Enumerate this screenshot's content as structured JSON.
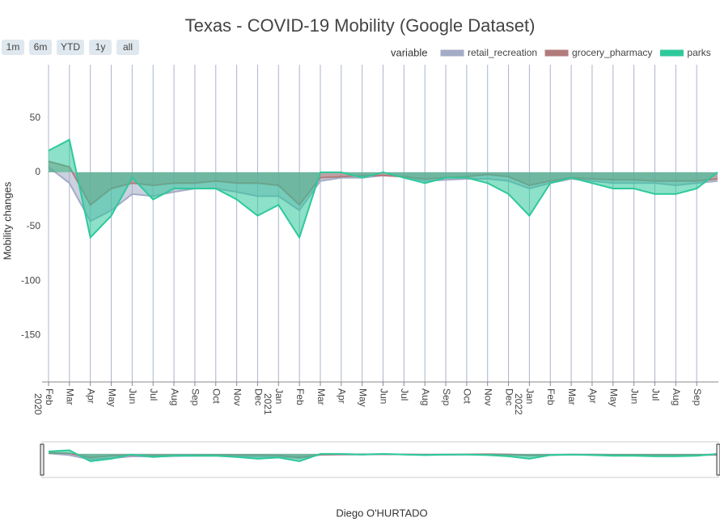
{
  "chart_data": {
    "type": "area",
    "title": "Texas - COVID-19 Mobility (Google Dataset)",
    "y_label": "Mobility changes",
    "x_label": "Diego O'HURTADO",
    "legend_title": "variable",
    "range_buttons": [
      "1m",
      "6m",
      "YTD",
      "1y",
      "all"
    ],
    "x": [
      "2020-02",
      "2020-03",
      "2020-04",
      "2020-05",
      "2020-06",
      "2020-07",
      "2020-08",
      "2020-09",
      "2020-10",
      "2020-11",
      "2020-12",
      "2021-01",
      "2021-02",
      "2021-03",
      "2021-04",
      "2021-05",
      "2021-06",
      "2021-07",
      "2021-08",
      "2021-09",
      "2021-10",
      "2021-11",
      "2021-12",
      "2022-01",
      "2022-02",
      "2022-03",
      "2022-04",
      "2022-05",
      "2022-06",
      "2022-07",
      "2022-08",
      "2022-09",
      "2022-10"
    ],
    "series": [
      {
        "name": "retail_recreation",
        "color": "#a3abc6",
        "values": [
          5,
          -10,
          -45,
          -35,
          -20,
          -22,
          -18,
          -15,
          -15,
          -18,
          -22,
          -22,
          -35,
          -8,
          -5,
          -5,
          -3,
          -4,
          -8,
          -7,
          -6,
          -6,
          -8,
          -15,
          -10,
          -6,
          -8,
          -10,
          -10,
          -10,
          -12,
          -10,
          -8
        ]
      },
      {
        "name": "grocery_pharmacy",
        "color": "#b27b7b",
        "values": [
          10,
          5,
          -30,
          -15,
          -10,
          -12,
          -10,
          -10,
          -8,
          -10,
          -10,
          -12,
          -30,
          -5,
          -4,
          -3,
          -3,
          -4,
          -6,
          -5,
          -4,
          -2,
          -4,
          -12,
          -8,
          -5,
          -6,
          -7,
          -7,
          -8,
          -8,
          -8,
          -6
        ]
      },
      {
        "name": "parks",
        "color": "#2ec99b",
        "values": [
          20,
          30,
          -60,
          -40,
          -5,
          -25,
          -15,
          -15,
          -15,
          -25,
          -40,
          -30,
          -60,
          0,
          0,
          -5,
          0,
          -5,
          -10,
          -5,
          -5,
          -10,
          -20,
          -40,
          -10,
          -5,
          -10,
          -15,
          -15,
          -20,
          -20,
          -15,
          0
        ]
      }
    ],
    "xlim": [
      "2020-02",
      "2022-10"
    ],
    "xticks": [
      {
        "value": "2020-02",
        "label": "Feb"
      },
      {
        "value": "2020-03",
        "label": "Mar"
      },
      {
        "value": "2020-04",
        "label": "Apr"
      },
      {
        "value": "2020-05",
        "label": "May"
      },
      {
        "value": "2020-06",
        "label": "Jun"
      },
      {
        "value": "2020-07",
        "label": "Jul"
      },
      {
        "value": "2020-08",
        "label": "Aug"
      },
      {
        "value": "2020-09",
        "label": "Sep"
      },
      {
        "value": "2020-10",
        "label": "Oct"
      },
      {
        "value": "2020-11",
        "label": "Nov"
      },
      {
        "value": "2020-12",
        "label": "Dec"
      },
      {
        "value": "2021-01",
        "label": "Jan"
      },
      {
        "value": "2021-02",
        "label": "Feb"
      },
      {
        "value": "2021-03",
        "label": "Mar"
      },
      {
        "value": "2021-04",
        "label": "Apr"
      },
      {
        "value": "2021-05",
        "label": "May"
      },
      {
        "value": "2021-06",
        "label": "Jun"
      },
      {
        "value": "2021-07",
        "label": "Jul"
      },
      {
        "value": "2021-08",
        "label": "Aug"
      },
      {
        "value": "2021-09",
        "label": "Sep"
      },
      {
        "value": "2021-10",
        "label": "Oct"
      },
      {
        "value": "2021-11",
        "label": "Nov"
      },
      {
        "value": "2021-12",
        "label": "Dec"
      },
      {
        "value": "2022-01",
        "label": "Jan"
      },
      {
        "value": "2022-02",
        "label": "Feb"
      },
      {
        "value": "2022-03",
        "label": "Mar"
      },
      {
        "value": "2022-04",
        "label": "Apr"
      },
      {
        "value": "2022-05",
        "label": "May"
      },
      {
        "value": "2022-06",
        "label": "Jun"
      },
      {
        "value": "2022-07",
        "label": "Jul"
      },
      {
        "value": "2022-08",
        "label": "Aug"
      },
      {
        "value": "2022-09",
        "label": "Sep"
      }
    ],
    "xtick_years": [
      {
        "value": "2020-02",
        "label": "2020"
      },
      {
        "value": "2021-01",
        "label": "2021"
      },
      {
        "value": "2022-01",
        "label": "2022"
      }
    ],
    "ylim": [
      -193,
      99
    ],
    "yticks": [
      -150,
      -100,
      -50,
      0,
      50
    ],
    "grid": true
  }
}
